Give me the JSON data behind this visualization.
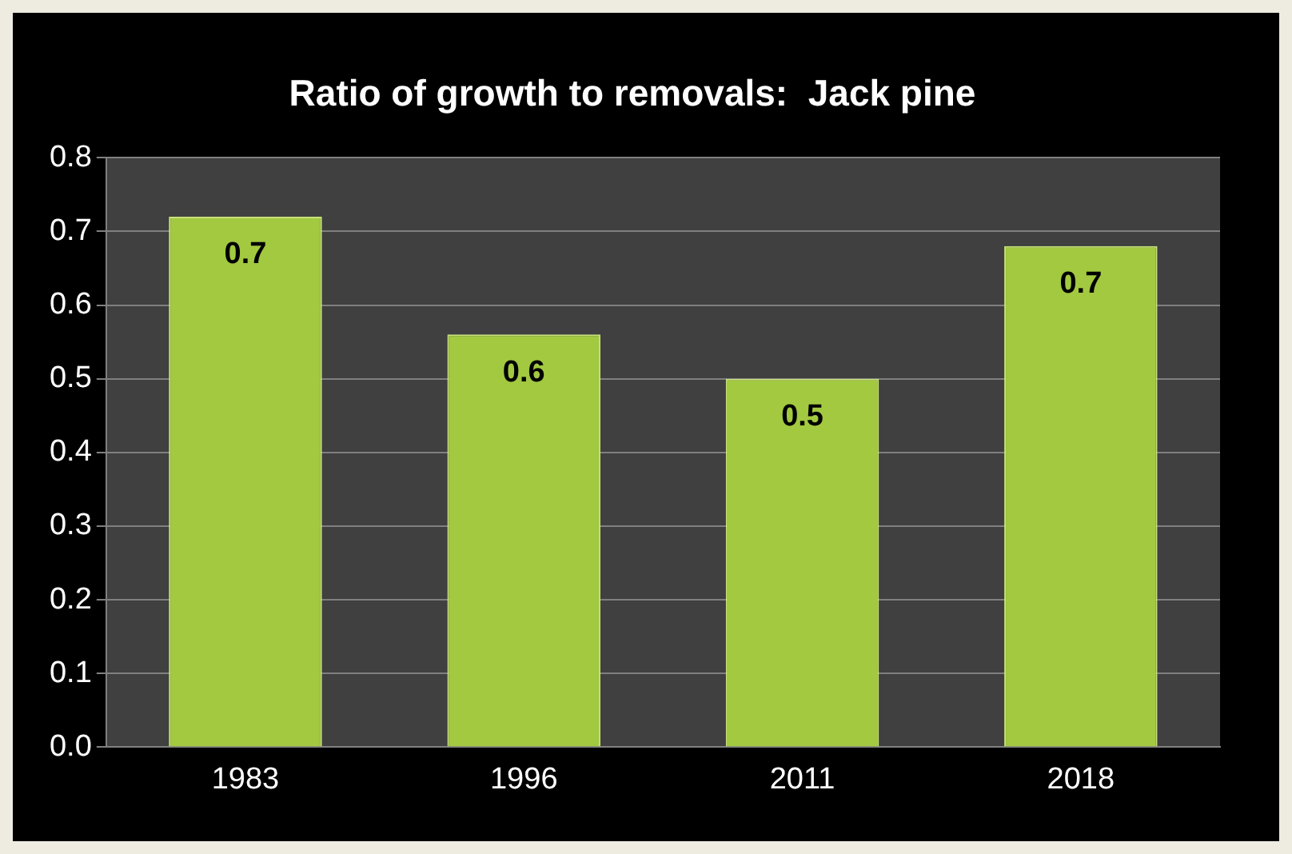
{
  "chart_data": {
    "type": "bar",
    "title": "Ratio of growth to removals:  Jack pine",
    "categories": [
      "1983",
      "1996",
      "2011",
      "2018"
    ],
    "values": [
      0.72,
      0.56,
      0.5,
      0.68
    ],
    "value_labels": [
      "0.7",
      "0.6",
      "0.5",
      "0.7"
    ],
    "color": "#a2c940",
    "ylim": [
      0,
      0.8
    ],
    "yticks": [
      {
        "value": 0,
        "label": "0.0"
      },
      {
        "value": 0.1,
        "label": "0.1"
      },
      {
        "value": 0.2,
        "label": "0.2"
      },
      {
        "value": 0.3,
        "label": "0.3"
      },
      {
        "value": 0.4,
        "label": "0.4"
      },
      {
        "value": 0.5,
        "label": "0.5"
      },
      {
        "value": 0.6,
        "label": "0.6"
      },
      {
        "value": 0.7,
        "label": "0.7"
      },
      {
        "value": 0.8,
        "label": "0.8"
      }
    ],
    "grid": "y",
    "legend": false
  }
}
